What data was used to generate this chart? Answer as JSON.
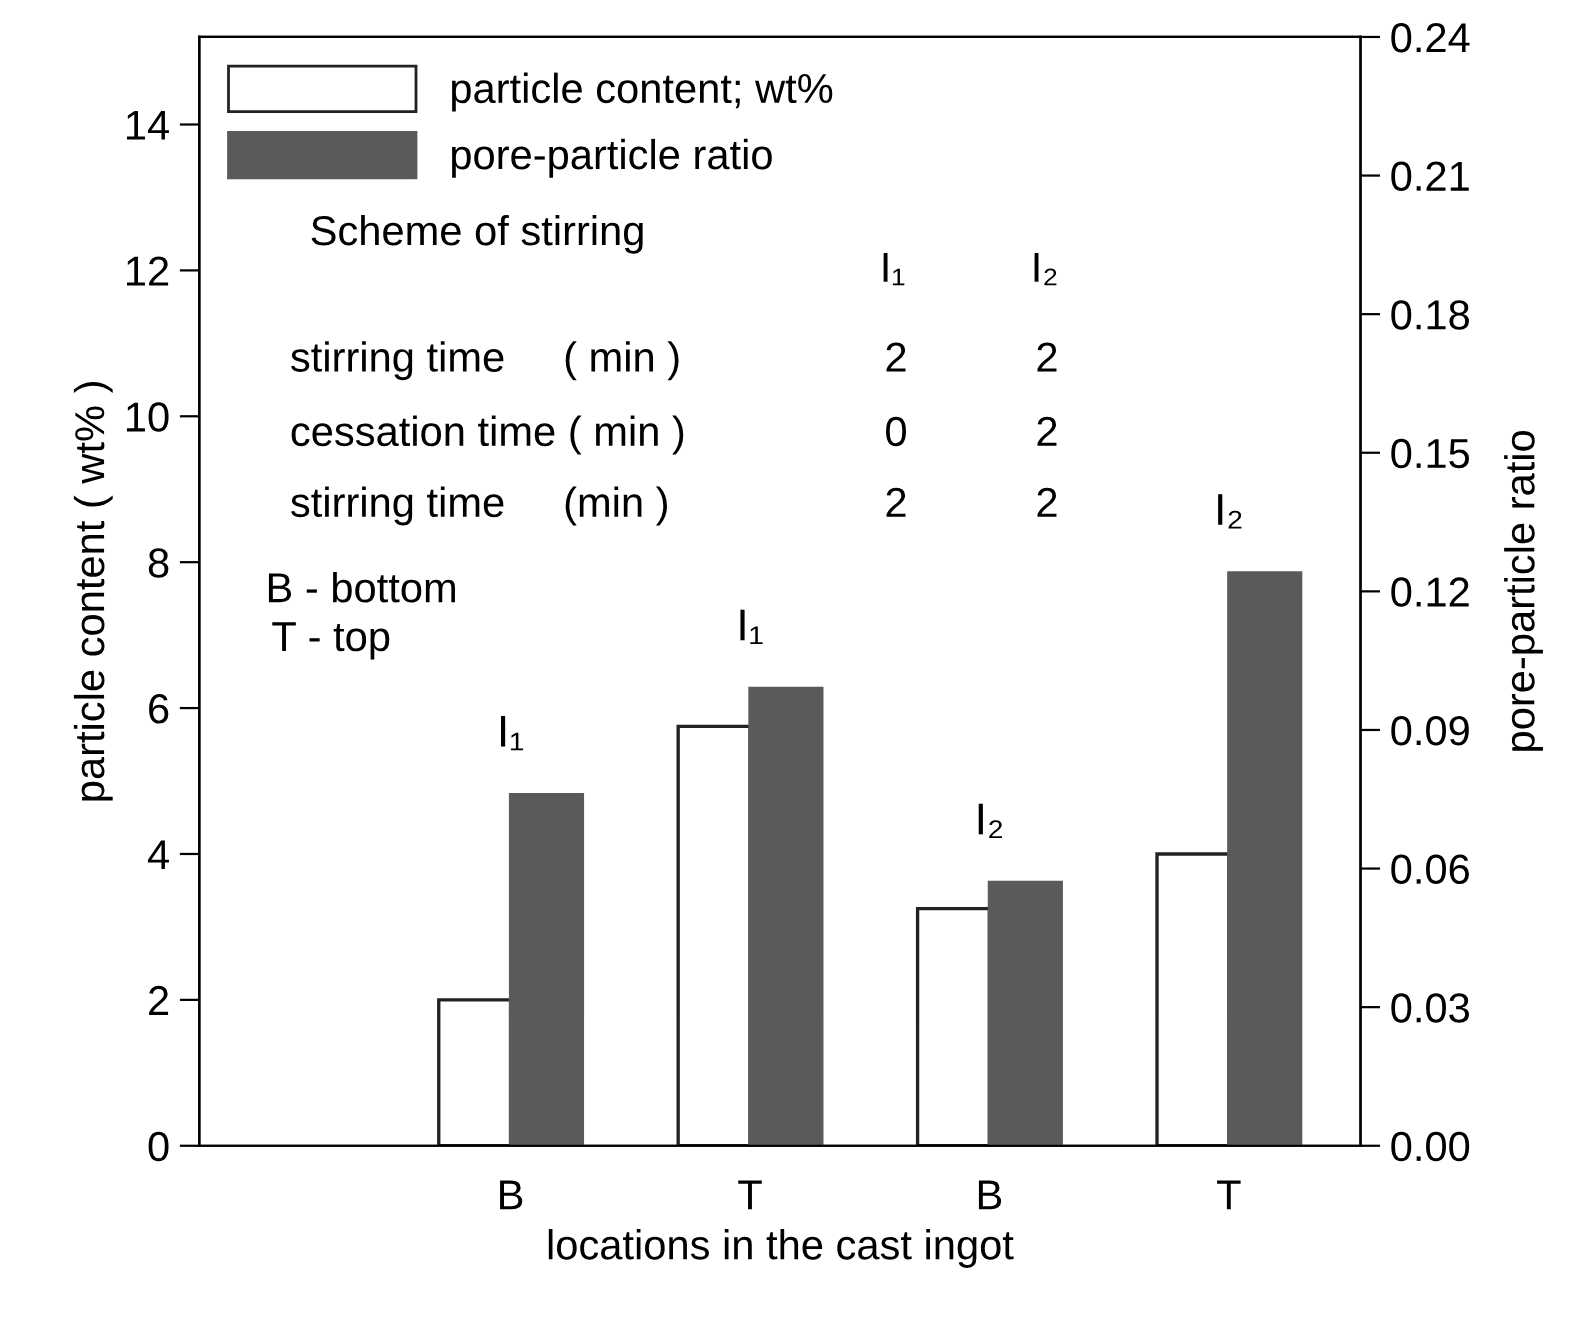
{
  "chart_data": {
    "type": "bar",
    "categories": [
      "B",
      "T",
      "B",
      "T"
    ],
    "series": [
      {
        "name": "particle content; wt%",
        "color": "#ffffff",
        "values": [
          2.0,
          5.75,
          3.25,
          4.0
        ]
      },
      {
        "name": "pore-particle ratio",
        "color": "#5a5a5a",
        "axis": "y2",
        "values": [
          0.076,
          0.099,
          0.057,
          0.124
        ]
      }
    ],
    "xlabel": "locations in the cast ingot",
    "ylabel": "particle content ( wt% )",
    "y2label": "pore-particle ratio",
    "ylim": [
      0,
      15.2
    ],
    "yticks": [
      0,
      2,
      4,
      6,
      8,
      10,
      12,
      14
    ],
    "y2lim": [
      0,
      0.24
    ],
    "y2ticks": [
      {
        "value": 0,
        "label": "0.00"
      },
      0.03,
      0.06,
      0.09,
      0.12,
      0.15,
      0.18,
      0.21,
      0.24
    ],
    "legend": "top left",
    "grid": false,
    "annotations": [
      "Scheme of stirring",
      "I₁",
      "I₂",
      "stirring time     ( min )",
      "2",
      "2",
      "cessation time ( min )",
      "0",
      "2",
      "stirring time     (min )",
      "2",
      "2",
      "B - bottom",
      "T - top",
      "I₁",
      "I₁",
      "I₂",
      "I₂"
    ]
  }
}
